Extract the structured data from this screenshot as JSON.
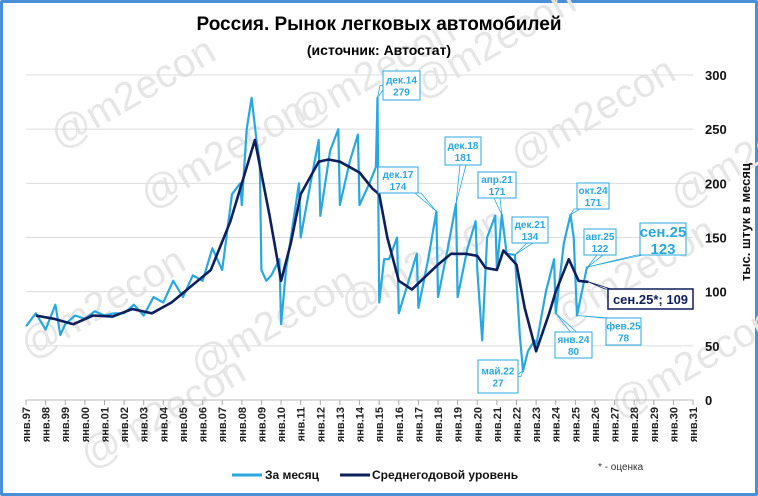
{
  "chart_data": {
    "type": "line",
    "title": "Россия. Рынок легковых автомобилей",
    "subtitle": "(источник: Автостат)",
    "ylabel": "тыс. штук в месяц",
    "ylim": [
      0,
      300
    ],
    "yticks": [
      0,
      50,
      100,
      150,
      200,
      250,
      300
    ],
    "grid": true,
    "legend_position": "bottom",
    "xticks": [
      "янв.97",
      "янв.98",
      "янв.99",
      "янв.00",
      "янв.01",
      "янв.02",
      "янв.03",
      "янв.04",
      "янв.05",
      "янв.06",
      "янв.07",
      "янв.08",
      "янв.09",
      "янв.10",
      "янв.11",
      "янв.12",
      "янв.13",
      "янв.14",
      "янв.15",
      "янв.16",
      "янв.17",
      "янв.18",
      "янв.19",
      "янв.20",
      "янв.21",
      "янв.22",
      "янв.23",
      "янв.24",
      "янв.25",
      "янв.26",
      "янв.27",
      "янв.28",
      "янв.29",
      "янв.30",
      "янв.31"
    ],
    "series": [
      {
        "name": "За месяц",
        "color": "#29a8e0",
        "points": [
          [
            "1997-01",
            68
          ],
          [
            "1997-07",
            80
          ],
          [
            "1998-01",
            65
          ],
          [
            "1998-07",
            88
          ],
          [
            "1998-10",
            60
          ],
          [
            "1999-01",
            70
          ],
          [
            "1999-07",
            78
          ],
          [
            "2000-01",
            75
          ],
          [
            "2000-07",
            82
          ],
          [
            "2001-01",
            78
          ],
          [
            "2001-07",
            80
          ],
          [
            "2002-01",
            80
          ],
          [
            "2002-07",
            88
          ],
          [
            "2003-01",
            78
          ],
          [
            "2003-07",
            95
          ],
          [
            "2004-01",
            90
          ],
          [
            "2004-07",
            110
          ],
          [
            "2005-01",
            95
          ],
          [
            "2005-07",
            115
          ],
          [
            "2006-01",
            110
          ],
          [
            "2006-07",
            140
          ],
          [
            "2007-01",
            120
          ],
          [
            "2007-07",
            190
          ],
          [
            "2007-12",
            200
          ],
          [
            "2008-01",
            180
          ],
          [
            "2008-04",
            250
          ],
          [
            "2008-07",
            279
          ],
          [
            "2008-10",
            240
          ],
          [
            "2008-12",
            220
          ],
          [
            "2009-01",
            120
          ],
          [
            "2009-04",
            110
          ],
          [
            "2009-07",
            115
          ],
          [
            "2009-12",
            130
          ],
          [
            "2010-01",
            70
          ],
          [
            "2010-04",
            120
          ],
          [
            "2010-07",
            150
          ],
          [
            "2010-12",
            200
          ],
          [
            "2011-01",
            150
          ],
          [
            "2011-07",
            200
          ],
          [
            "2011-12",
            240
          ],
          [
            "2012-01",
            170
          ],
          [
            "2012-07",
            230
          ],
          [
            "2012-12",
            250
          ],
          [
            "2013-01",
            180
          ],
          [
            "2013-07",
            220
          ],
          [
            "2013-12",
            245
          ],
          [
            "2014-01",
            180
          ],
          [
            "2014-07",
            200
          ],
          [
            "2014-11",
            215
          ],
          [
            "2014-12",
            279
          ],
          [
            "2015-01",
            90
          ],
          [
            "2015-04",
            130
          ],
          [
            "2015-07",
            130
          ],
          [
            "2015-12",
            150
          ],
          [
            "2016-01",
            80
          ],
          [
            "2016-07",
            110
          ],
          [
            "2016-12",
            135
          ],
          [
            "2017-01",
            85
          ],
          [
            "2017-07",
            130
          ],
          [
            "2017-12",
            174
          ],
          [
            "2018-01",
            95
          ],
          [
            "2018-07",
            140
          ],
          [
            "2018-12",
            181
          ],
          [
            "2019-01",
            95
          ],
          [
            "2019-07",
            140
          ],
          [
            "2019-12",
            165
          ],
          [
            "2020-01",
            120
          ],
          [
            "2020-04",
            55
          ],
          [
            "2020-07",
            150
          ],
          [
            "2020-12",
            170
          ],
          [
            "2021-01",
            120
          ],
          [
            "2021-04",
            171
          ],
          [
            "2021-07",
            135
          ],
          [
            "2021-12",
            134
          ],
          [
            "2022-01",
            110
          ],
          [
            "2022-03",
            60
          ],
          [
            "2022-05",
            27
          ],
          [
            "2022-08",
            45
          ],
          [
            "2022-12",
            55
          ],
          [
            "2023-01",
            50
          ],
          [
            "2023-07",
            100
          ],
          [
            "2023-12",
            130
          ],
          [
            "2024-01",
            80
          ],
          [
            "2024-06",
            145
          ],
          [
            "2024-10",
            171
          ],
          [
            "2024-12",
            150
          ],
          [
            "2025-02",
            78
          ],
          [
            "2025-05",
            100
          ],
          [
            "2025-08",
            122
          ],
          [
            "2025-09",
            123
          ]
        ]
      },
      {
        "name": "Среднегодовой уровень",
        "color": "#0d1f5c",
        "points": [
          [
            "1997-07",
            78
          ],
          [
            "1998-06",
            75
          ],
          [
            "1999-06",
            70
          ],
          [
            "2000-06",
            78
          ],
          [
            "2001-06",
            77
          ],
          [
            "2002-06",
            84
          ],
          [
            "2003-06",
            80
          ],
          [
            "2004-06",
            90
          ],
          [
            "2005-06",
            105
          ],
          [
            "2006-06",
            120
          ],
          [
            "2007-06",
            165
          ],
          [
            "2008-09",
            240
          ],
          [
            "2009-06",
            170
          ],
          [
            "2010-01",
            110
          ],
          [
            "2010-07",
            145
          ],
          [
            "2011-01",
            190
          ],
          [
            "2011-12",
            220
          ],
          [
            "2012-06",
            222
          ],
          [
            "2013-01",
            220
          ],
          [
            "2014-01",
            210
          ],
          [
            "2014-09",
            195
          ],
          [
            "2015-01",
            190
          ],
          [
            "2015-06",
            150
          ],
          [
            "2016-01",
            110
          ],
          [
            "2016-09",
            102
          ],
          [
            "2017-06",
            115
          ],
          [
            "2018-01",
            125
          ],
          [
            "2018-09",
            135
          ],
          [
            "2019-06",
            135
          ],
          [
            "2020-01",
            133
          ],
          [
            "2020-06",
            122
          ],
          [
            "2021-01",
            120
          ],
          [
            "2021-05",
            138
          ],
          [
            "2022-01",
            125
          ],
          [
            "2022-06",
            85
          ],
          [
            "2023-01",
            45
          ],
          [
            "2023-09",
            80
          ],
          [
            "2024-01",
            100
          ],
          [
            "2024-09",
            130
          ],
          [
            "2025-03",
            110
          ],
          [
            "2025-09",
            109
          ]
        ]
      }
    ],
    "annotations": [
      {
        "label": "дек.14",
        "value": "279",
        "date": "2014-12",
        "y": 279
      },
      {
        "label": "дек.17",
        "value": "174",
        "date": "2017-12",
        "y": 174
      },
      {
        "label": "дек.18",
        "value": "181",
        "date": "2018-12",
        "y": 181
      },
      {
        "label": "апр.21",
        "value": "171",
        "date": "2021-04",
        "y": 171
      },
      {
        "label": "дек.21",
        "value": "134",
        "date": "2021-12",
        "y": 134
      },
      {
        "label": "окт.24",
        "value": "171",
        "date": "2024-10",
        "y": 171
      },
      {
        "label": "авг.25",
        "value": "122",
        "date": "2025-08",
        "y": 122
      },
      {
        "label": "сен.25",
        "value": "123",
        "date": "2025-09",
        "y": 123
      },
      {
        "label": "фев.25",
        "value": "78",
        "date": "2025-02",
        "y": 78
      },
      {
        "label": "янв.24",
        "value": "80",
        "date": "2024-01",
        "y": 80
      },
      {
        "label": "май.22",
        "value": "27",
        "date": "2022-05",
        "y": 27
      },
      {
        "label": "сен.25*; 109",
        "value": "",
        "date": "2025-09",
        "y": 109
      }
    ],
    "footnote": "* - оценка",
    "watermark": "@m2econ"
  }
}
